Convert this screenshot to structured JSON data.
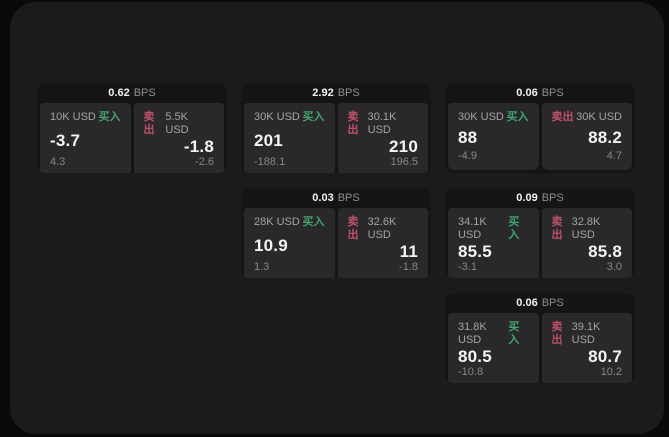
{
  "labels": {
    "bps_unit": "BPS",
    "buy": "买入",
    "sell": "卖出"
  },
  "colors": {
    "background": "#0a0a0b",
    "panel": "#1b1b1d",
    "card": "#151517",
    "tile": "#29292c",
    "buy_green": "#3fa56b",
    "sell_red": "#c14f66"
  },
  "cards": [
    {
      "bps": "0.62",
      "buy": {
        "amount": "10K USD",
        "value": "-3.7",
        "delta": "4.3"
      },
      "sell": {
        "amount": "5.5K USD",
        "value": "-1.8",
        "delta": "-2.6"
      }
    },
    {
      "bps": "2.92",
      "buy": {
        "amount": "30K USD",
        "value": "201",
        "delta": "-188.1"
      },
      "sell": {
        "amount": "30.1K USD",
        "value": "210",
        "delta": "196.5"
      }
    },
    {
      "bps": "0.06",
      "buy": {
        "amount": "30K USD",
        "value": "88",
        "delta": "-4.9"
      },
      "sell": {
        "amount": "30K USD",
        "value": "88.2",
        "delta": "4.7"
      }
    },
    {
      "bps": "0.03",
      "buy": {
        "amount": "28K USD",
        "value": "10.9",
        "delta": "1.3"
      },
      "sell": {
        "amount": "32.6K USD",
        "value": "11",
        "delta": "-1.8"
      }
    },
    {
      "bps": "0.09",
      "buy": {
        "amount": "34.1K USD",
        "value": "85.5",
        "delta": "-3.1"
      },
      "sell": {
        "amount": "32.8K USD",
        "value": "85.8",
        "delta": "3.0"
      }
    },
    {
      "bps": "0.06",
      "buy": {
        "amount": "31.8K USD",
        "value": "80.5",
        "delta": "-10.8"
      },
      "sell": {
        "amount": "39.1K USD",
        "value": "80.7",
        "delta": "10.2"
      }
    }
  ]
}
